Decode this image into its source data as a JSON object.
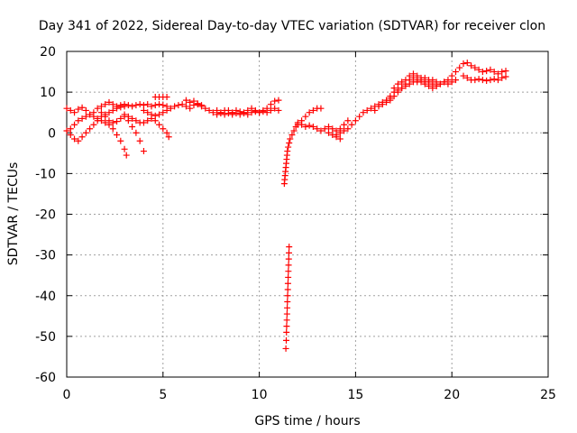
{
  "chart_data": {
    "type": "scatter",
    "title": "Day 341 of 2022, Sidereal Day-to-day VTEC variation (SDTVAR) for receiver clon",
    "xlabel": "GPS time / hours",
    "ylabel": "SDTVAR / TECUs",
    "xlim": [
      0,
      25
    ],
    "ylim": [
      -60,
      20
    ],
    "xticks": [
      0,
      5,
      10,
      15,
      20,
      25
    ],
    "xtick_labels": [
      "0",
      "5",
      "10",
      "15",
      "20",
      "25"
    ],
    "yticks": [
      -60,
      -50,
      -40,
      -30,
      -20,
      -10,
      0,
      10,
      20
    ],
    "ytick_labels": [
      "-60",
      "-50",
      "-40",
      "-30",
      "-20",
      "-10",
      "0",
      "10",
      "20"
    ],
    "grid": true,
    "marker": "+",
    "series": [
      {
        "name": "SDTVAR",
        "color": "#ff0000",
        "points": [
          [
            0.0,
            6.0
          ],
          [
            0.2,
            5.5
          ],
          [
            0.4,
            5.0
          ],
          [
            0.6,
            5.8
          ],
          [
            0.8,
            6.2
          ],
          [
            1.0,
            5.5
          ],
          [
            1.2,
            4.5
          ],
          [
            1.4,
            5.0
          ],
          [
            1.6,
            6.0
          ],
          [
            1.8,
            6.5
          ],
          [
            2.0,
            7.0
          ],
          [
            2.2,
            7.5
          ],
          [
            2.4,
            7.0
          ],
          [
            2.6,
            6.5
          ],
          [
            2.8,
            6.8
          ],
          [
            3.0,
            7.0
          ],
          [
            3.2,
            6.8
          ],
          [
            3.4,
            6.5
          ],
          [
            3.6,
            6.8
          ],
          [
            3.8,
            7.0
          ],
          [
            4.0,
            6.8
          ],
          [
            4.2,
            7.0
          ],
          [
            4.4,
            6.5
          ],
          [
            4.6,
            6.8
          ],
          [
            4.8,
            7.0
          ],
          [
            5.0,
            6.8
          ],
          [
            5.2,
            6.5
          ],
          [
            0.0,
            0.5
          ],
          [
            0.2,
            -0.5
          ],
          [
            0.4,
            -1.5
          ],
          [
            0.6,
            -2.0
          ],
          [
            0.8,
            -1.0
          ],
          [
            1.0,
            0.0
          ],
          [
            1.2,
            1.0
          ],
          [
            1.4,
            2.0
          ],
          [
            1.6,
            3.0
          ],
          [
            1.8,
            4.0
          ],
          [
            2.0,
            4.5
          ],
          [
            2.2,
            5.0
          ],
          [
            2.4,
            5.5
          ],
          [
            2.6,
            6.0
          ],
          [
            2.8,
            6.3
          ],
          [
            3.0,
            6.5
          ],
          [
            0.2,
            1.0
          ],
          [
            0.4,
            2.0
          ],
          [
            0.6,
            3.0
          ],
          [
            0.8,
            3.5
          ],
          [
            1.0,
            4.0
          ],
          [
            1.2,
            4.5
          ],
          [
            1.4,
            4.0
          ],
          [
            1.6,
            3.5
          ],
          [
            1.8,
            3.0
          ],
          [
            2.0,
            2.5
          ],
          [
            2.2,
            2.0
          ],
          [
            2.4,
            1.0
          ],
          [
            2.6,
            -0.5
          ],
          [
            2.8,
            -2.0
          ],
          [
            3.0,
            -4.0
          ],
          [
            3.1,
            -5.5
          ],
          [
            1.8,
            5.0
          ],
          [
            2.0,
            4.0
          ],
          [
            2.2,
            3.0
          ],
          [
            2.4,
            2.5
          ],
          [
            2.6,
            2.8
          ],
          [
            2.8,
            3.5
          ],
          [
            3.0,
            4.0
          ],
          [
            3.2,
            3.0
          ],
          [
            3.4,
            1.5
          ],
          [
            3.6,
            0.0
          ],
          [
            3.8,
            -2.0
          ],
          [
            4.0,
            -4.5
          ],
          [
            3.0,
            4.5
          ],
          [
            3.2,
            4.0
          ],
          [
            3.4,
            3.5
          ],
          [
            3.6,
            3.0
          ],
          [
            3.8,
            2.5
          ],
          [
            4.0,
            2.5
          ],
          [
            4.2,
            3.0
          ],
          [
            4.4,
            3.5
          ],
          [
            4.6,
            3.0
          ],
          [
            4.8,
            2.0
          ],
          [
            5.0,
            1.0
          ],
          [
            5.2,
            0.0
          ],
          [
            5.3,
            -1.0
          ],
          [
            4.0,
            5.5
          ],
          [
            4.2,
            5.0
          ],
          [
            4.4,
            4.5
          ],
          [
            4.6,
            4.2
          ],
          [
            4.8,
            4.5
          ],
          [
            5.0,
            5.0
          ],
          [
            5.2,
            5.5
          ],
          [
            5.4,
            6.0
          ],
          [
            5.6,
            6.5
          ],
          [
            5.8,
            6.8
          ],
          [
            6.0,
            7.0
          ],
          [
            6.2,
            6.5
          ],
          [
            6.4,
            6.0
          ],
          [
            6.6,
            6.8
          ],
          [
            6.8,
            7.0
          ],
          [
            7.0,
            6.8
          ],
          [
            4.6,
            8.8
          ],
          [
            4.8,
            8.8
          ],
          [
            5.0,
            8.8
          ],
          [
            5.2,
            8.8
          ],
          [
            6.2,
            8.0
          ],
          [
            6.4,
            7.5
          ],
          [
            6.6,
            7.8
          ],
          [
            6.8,
            7.2
          ],
          [
            7.0,
            6.5
          ],
          [
            7.2,
            6.0
          ],
          [
            7.4,
            5.5
          ],
          [
            7.6,
            5.0
          ],
          [
            7.8,
            5.5
          ],
          [
            8.0,
            5.0
          ],
          [
            8.2,
            5.5
          ],
          [
            8.4,
            5.5
          ],
          [
            8.6,
            5.0
          ],
          [
            8.8,
            5.5
          ],
          [
            9.0,
            5.2
          ],
          [
            9.2,
            5.0
          ],
          [
            9.4,
            5.5
          ],
          [
            9.6,
            6.0
          ],
          [
            9.8,
            5.5
          ],
          [
            10.0,
            5.0
          ],
          [
            10.2,
            5.5
          ],
          [
            10.4,
            6.0
          ],
          [
            10.6,
            7.0
          ],
          [
            10.8,
            7.8
          ],
          [
            11.0,
            8.0
          ],
          [
            7.8,
            4.5
          ],
          [
            8.0,
            4.8
          ],
          [
            8.2,
            4.5
          ],
          [
            8.4,
            4.8
          ],
          [
            8.6,
            4.5
          ],
          [
            8.8,
            4.8
          ],
          [
            9.0,
            4.5
          ],
          [
            9.2,
            4.8
          ],
          [
            9.4,
            4.5
          ],
          [
            9.6,
            5.0
          ],
          [
            9.8,
            5.2
          ],
          [
            10.0,
            5.0
          ],
          [
            10.2,
            5.2
          ],
          [
            10.4,
            5.0
          ],
          [
            10.6,
            5.5
          ],
          [
            10.8,
            6.0
          ],
          [
            11.0,
            5.5
          ],
          [
            11.3,
            -12.5
          ],
          [
            11.32,
            -11.5
          ],
          [
            11.34,
            -10.5
          ],
          [
            11.36,
            -9.5
          ],
          [
            11.38,
            -8.5
          ],
          [
            11.4,
            -7.5
          ],
          [
            11.42,
            -6.5
          ],
          [
            11.44,
            -5.5
          ],
          [
            11.46,
            -4.5
          ],
          [
            11.5,
            -3.5
          ],
          [
            11.55,
            -2.5
          ],
          [
            11.6,
            -1.5
          ],
          [
            11.7,
            -0.5
          ],
          [
            11.8,
            0.5
          ],
          [
            11.9,
            1.5
          ],
          [
            12.0,
            2.0
          ],
          [
            12.2,
            3.0
          ],
          [
            12.4,
            4.0
          ],
          [
            12.6,
            5.0
          ],
          [
            12.8,
            5.5
          ],
          [
            13.0,
            6.0
          ],
          [
            13.2,
            6.0
          ],
          [
            11.55,
            -28.0
          ],
          [
            11.54,
            -29.5
          ],
          [
            11.53,
            -31.0
          ],
          [
            11.52,
            -32.5
          ],
          [
            11.51,
            -34.0
          ],
          [
            11.5,
            -35.5
          ],
          [
            11.49,
            -37.0
          ],
          [
            11.48,
            -38.5
          ],
          [
            11.47,
            -40.0
          ],
          [
            11.46,
            -41.5
          ],
          [
            11.45,
            -43.0
          ],
          [
            11.44,
            -44.5
          ],
          [
            11.43,
            -46.0
          ],
          [
            11.42,
            -47.5
          ],
          [
            11.41,
            -49.0
          ],
          [
            11.4,
            -51.0
          ],
          [
            11.38,
            -53.0
          ],
          [
            12.0,
            2.5
          ],
          [
            12.2,
            2.0
          ],
          [
            12.4,
            1.5
          ],
          [
            12.6,
            1.8
          ],
          [
            12.8,
            1.5
          ],
          [
            13.0,
            1.0
          ],
          [
            13.2,
            0.5
          ],
          [
            13.4,
            1.0
          ],
          [
            13.6,
            1.5
          ],
          [
            13.8,
            1.0
          ],
          [
            14.0,
            0.5
          ],
          [
            14.2,
            0.0
          ],
          [
            14.4,
            0.5
          ],
          [
            14.6,
            1.0
          ],
          [
            14.8,
            2.0
          ],
          [
            15.0,
            3.0
          ],
          [
            15.2,
            4.0
          ],
          [
            15.4,
            5.0
          ],
          [
            15.6,
            5.5
          ],
          [
            15.8,
            6.0
          ],
          [
            16.0,
            6.5
          ],
          [
            16.2,
            7.0
          ],
          [
            16.4,
            7.5
          ],
          [
            16.6,
            8.0
          ],
          [
            16.8,
            8.5
          ],
          [
            13.6,
            0.0
          ],
          [
            13.8,
            -0.5
          ],
          [
            14.0,
            -1.0
          ],
          [
            14.2,
            -1.5
          ],
          [
            14.0,
            -0.5
          ],
          [
            14.2,
            1.0
          ],
          [
            14.4,
            2.0
          ],
          [
            14.6,
            3.0
          ],
          [
            16.0,
            5.5
          ],
          [
            16.2,
            6.5
          ],
          [
            16.4,
            7.0
          ],
          [
            16.6,
            7.5
          ],
          [
            16.8,
            8.0
          ],
          [
            17.0,
            9.0
          ],
          [
            17.2,
            10.0
          ],
          [
            17.4,
            11.0
          ],
          [
            17.6,
            11.5
          ],
          [
            17.8,
            12.0
          ],
          [
            18.0,
            12.5
          ],
          [
            18.2,
            13.0
          ],
          [
            18.4,
            12.5
          ],
          [
            18.6,
            12.0
          ],
          [
            18.8,
            12.5
          ],
          [
            19.0,
            13.0
          ],
          [
            19.2,
            12.5
          ],
          [
            19.4,
            12.0
          ],
          [
            19.6,
            12.5
          ],
          [
            19.8,
            13.0
          ],
          [
            20.0,
            14.0
          ],
          [
            20.2,
            15.0
          ],
          [
            20.4,
            16.0
          ],
          [
            20.6,
            17.0
          ],
          [
            20.8,
            17.2
          ],
          [
            21.0,
            16.5
          ],
          [
            21.2,
            16.0
          ],
          [
            21.4,
            15.5
          ],
          [
            21.6,
            15.0
          ],
          [
            21.8,
            15.2
          ],
          [
            22.0,
            15.5
          ],
          [
            22.2,
            15.0
          ],
          [
            22.4,
            14.5
          ],
          [
            22.6,
            15.0
          ],
          [
            22.8,
            15.2
          ],
          [
            16.8,
            9.0
          ],
          [
            17.0,
            10.0
          ],
          [
            17.2,
            10.5
          ],
          [
            17.4,
            11.0
          ],
          [
            17.6,
            12.0
          ],
          [
            17.8,
            13.0
          ],
          [
            18.0,
            13.5
          ],
          [
            18.2,
            12.5
          ],
          [
            18.4,
            13.0
          ],
          [
            18.6,
            13.5
          ],
          [
            18.8,
            13.0
          ],
          [
            19.0,
            12.0
          ],
          [
            19.2,
            11.5
          ],
          [
            19.4,
            12.0
          ],
          [
            19.6,
            12.5
          ],
          [
            19.8,
            12.0
          ],
          [
            20.0,
            12.5
          ],
          [
            20.2,
            13.0
          ],
          [
            17.0,
            11.0
          ],
          [
            17.2,
            12.0
          ],
          [
            17.4,
            12.5
          ],
          [
            17.6,
            13.0
          ],
          [
            17.8,
            14.0
          ],
          [
            18.0,
            14.5
          ],
          [
            18.2,
            14.0
          ],
          [
            18.4,
            13.5
          ],
          [
            18.6,
            12.5
          ],
          [
            18.8,
            11.5
          ],
          [
            19.0,
            11.0
          ],
          [
            19.2,
            11.5
          ],
          [
            20.6,
            14.0
          ],
          [
            20.8,
            13.5
          ],
          [
            21.0,
            13.0
          ],
          [
            21.2,
            13.0
          ],
          [
            21.4,
            13.2
          ],
          [
            21.6,
            13.0
          ],
          [
            21.8,
            12.8
          ],
          [
            22.0,
            13.0
          ],
          [
            22.2,
            13.2
          ],
          [
            22.4,
            13.0
          ],
          [
            22.6,
            13.5
          ],
          [
            22.8,
            13.8
          ]
        ]
      }
    ]
  }
}
